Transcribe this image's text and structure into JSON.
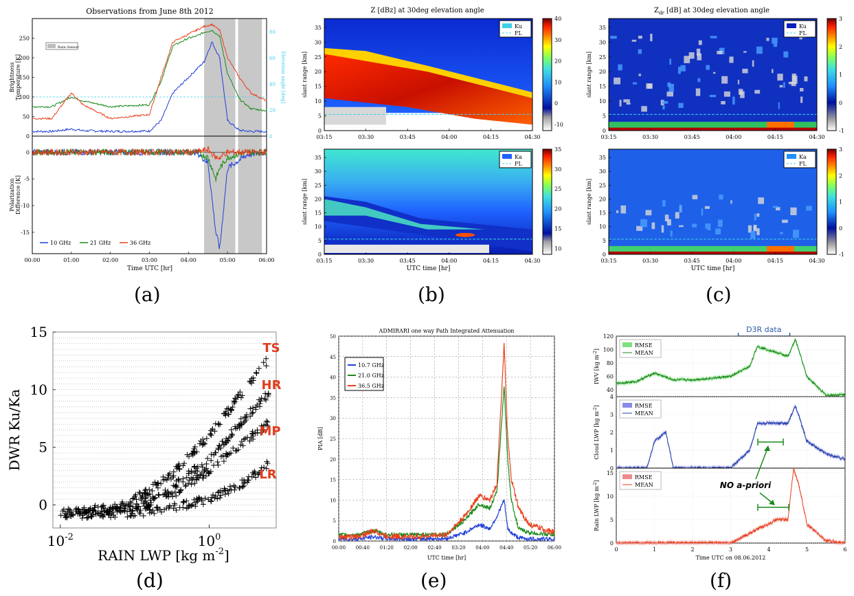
{
  "captions": [
    "(a)",
    "(b)",
    "(c)",
    "(d)",
    "(e)",
    "(f)"
  ],
  "panel_a": {
    "title": "Observations from June 8th 2012",
    "legend_box": "Rain Sensor",
    "top_ylabel": "Brightness Temperature [K]",
    "top_ylabel_lines": [
      "Brightness",
      "Temperature [K]"
    ],
    "right_ylabel": "Elevation angle [deg]",
    "bottom_ylabel_lines": [
      "Polarization",
      "Difference [K]"
    ],
    "xlabel": "Time UTC [hr]",
    "xticks": [
      "00:00",
      "01:00",
      "02:00",
      "03:00",
      "04:00",
      "05:00",
      "06:00"
    ],
    "top_yticks": [
      "0",
      "50",
      "100",
      "150",
      "200",
      "250"
    ],
    "right_yticks": [
      "0",
      "20",
      "40",
      "60",
      "80"
    ],
    "bottom_yticks": [
      "-15",
      "-10",
      "-5",
      "0"
    ],
    "legend": [
      "10 GHz",
      "21 GHz",
      "36 GHz"
    ]
  },
  "panel_b": {
    "title": "Z [dBz] at 30deg elevation angle",
    "ylabel": "slant range [km]",
    "xlabel": "UTC time [hr]",
    "xticks": [
      "03:15",
      "03:30",
      "03:45",
      "04:00",
      "04:15",
      "04:30"
    ],
    "yticks": [
      "0",
      "5",
      "10",
      "15",
      "20",
      "25",
      "30",
      "35"
    ],
    "top_colorbar": [
      "-10",
      "0",
      "10",
      "20",
      "30",
      "40"
    ],
    "bottom_colorbar": [
      "10",
      "15",
      "20",
      "25",
      "30",
      "35"
    ],
    "top_legend": [
      "Ku",
      "FL"
    ],
    "bottom_legend": [
      "Ka",
      "FL"
    ]
  },
  "panel_c": {
    "title_z": "Z",
    "title_sub": "dr",
    "title_rest": " [dB] at 30deg elevation angle",
    "ylabel": "slant range [km]",
    "xlabel": "UTC time [hr]",
    "xticks": [
      "03:15",
      "03:30",
      "03:45",
      "04:00",
      "04:15",
      "04:30"
    ],
    "yticks": [
      "0",
      "5",
      "10",
      "15",
      "20",
      "25",
      "30",
      "35"
    ],
    "colorbar": [
      "-1",
      "0",
      "1",
      "2",
      "3"
    ],
    "top_legend": [
      "Ku",
      "FL"
    ],
    "bottom_legend": [
      "Ka",
      "FL"
    ]
  },
  "panel_d": {
    "ylabel": "DWR Ku/Ka",
    "xlabel": "RAIN LWP [kg m",
    "xlabel_sup": "-2",
    "xlabel_end": "]",
    "yticks": [
      "0",
      "5",
      "10",
      "15"
    ],
    "xticks_base": [
      "10",
      "10"
    ],
    "xticks_exp": [
      "-2",
      "0"
    ],
    "curve_labels": [
      "TS",
      "HR",
      "MP",
      "LR"
    ]
  },
  "panel_e": {
    "title": "ADMIRARI one way Path Integrated Attenuation",
    "ylabel": "PIA [dB]",
    "xlabel": "UTC time [hr]",
    "xticks": [
      "00:00",
      "00:40",
      "01:20",
      "02:00",
      "02:40",
      "03:20",
      "04:00",
      "04:40",
      "05:20",
      "06:00"
    ],
    "yticks": [
      "0",
      "5",
      "10",
      "15",
      "20",
      "25",
      "30",
      "35",
      "40",
      "45",
      "50"
    ],
    "legend": [
      "10.7 GHz",
      "21.0 GHz",
      "36.5 GHz"
    ]
  },
  "panel_f": {
    "d3r_label": "D3R data",
    "no_apriori": "NO a-priori",
    "xlabel": "Time UTC on 08.06.2012",
    "xticks": [
      "0",
      "1",
      "2",
      "3",
      "4",
      "5",
      "6"
    ],
    "top_ylabel": "IWV [kg m",
    "mid_ylabel": "Cloud LWP [kg m",
    "bot_ylabel": "Rain LWP [kg m",
    "ylabel_sup": "-2",
    "ylabel_end": "]",
    "top_yticks": [
      "40",
      "60",
      "80",
      "100",
      "120"
    ],
    "mid_yticks": [
      "0",
      "1",
      "2",
      "3",
      "4"
    ],
    "bot_yticks": [
      "0",
      "5",
      "10",
      "15"
    ],
    "legend_rmse": "RMSE",
    "legend_mean": "MEAN"
  },
  "colors": {
    "blue": "#1f3fd8",
    "green": "#1a8a1a",
    "red": "#e8401c",
    "cyan": "#3fd0e8",
    "accent_red": "#e03c1c",
    "gray_band": "#c8c8c8"
  },
  "chart_data": [
    {
      "type": "line",
      "panel": "a-top",
      "title": "Observations from June 8th 2012",
      "x": [
        0,
        0.5,
        1.0,
        1.3,
        2.0,
        3.0,
        3.3,
        3.6,
        4.0,
        4.2,
        4.4,
        4.6,
        4.8,
        5.0,
        5.3,
        5.6,
        6.0
      ],
      "series": [
        {
          "name": "10 GHz",
          "values": [
            12,
            12,
            18,
            14,
            12,
            13,
            40,
            110,
            150,
            170,
            190,
            240,
            200,
            40,
            15,
            12,
            12
          ]
        },
        {
          "name": "21 GHz",
          "values": [
            75,
            75,
            100,
            90,
            75,
            80,
            140,
            230,
            250,
            255,
            265,
            270,
            255,
            160,
            95,
            70,
            65
          ]
        },
        {
          "name": "36 GHz",
          "values": [
            45,
            45,
            110,
            80,
            45,
            55,
            150,
            240,
            260,
            270,
            280,
            285,
            270,
            200,
            150,
            110,
            90
          ]
        }
      ],
      "xlabel": "Time UTC [hr]",
      "ylabel": "Brightness Temperature [K]",
      "ylim": [
        0,
        300
      ]
    },
    {
      "type": "line",
      "panel": "a-bottom",
      "x": [
        0,
        1,
        2,
        3,
        4.2,
        4.5,
        4.7,
        4.8,
        5.0,
        5.5,
        6.0
      ],
      "series": [
        {
          "name": "10 GHz",
          "values": [
            0,
            0,
            0,
            0,
            0,
            -2,
            -15,
            -18,
            -3,
            -0.5,
            0
          ]
        },
        {
          "name": "21 GHz",
          "values": [
            0,
            0,
            0,
            0,
            0,
            -1,
            -5,
            -3,
            -1,
            0,
            0
          ]
        },
        {
          "name": "36 GHz",
          "values": [
            0,
            0,
            0,
            0,
            0,
            0.5,
            -1,
            -1,
            0,
            0,
            0
          ]
        }
      ],
      "ylabel": "Polarization Difference [K]",
      "ylim": [
        -19,
        3
      ]
    },
    {
      "type": "scatter",
      "panel": "d",
      "xlabel": "RAIN LWP [kg m-2]",
      "ylabel": "DWR Ku/Ka",
      "xscale": "log",
      "series": [
        {
          "name": "TS",
          "x": [
            0.01,
            0.05,
            0.1,
            0.3,
            1,
            3,
            6
          ],
          "values": [
            -0.5,
            -0.3,
            0.5,
            2.5,
            6,
            10,
            12.5
          ]
        },
        {
          "name": "HR",
          "x": [
            0.01,
            0.05,
            0.1,
            0.3,
            1,
            3,
            6
          ],
          "values": [
            -0.6,
            -0.5,
            0,
            1.5,
            4,
            7.5,
            9.5
          ]
        },
        {
          "name": "MP",
          "x": [
            0.01,
            0.05,
            0.1,
            0.3,
            1,
            3,
            6
          ],
          "values": [
            -0.7,
            -0.6,
            -0.3,
            0.8,
            3,
            5.5,
            7
          ]
        },
        {
          "name": "LR",
          "x": [
            0.01,
            0.05,
            0.1,
            0.3,
            1,
            3,
            6
          ],
          "values": [
            -0.8,
            -0.8,
            -0.7,
            -0.3,
            0.5,
            2,
            3.5
          ]
        }
      ],
      "ylim": [
        -2,
        15
      ]
    },
    {
      "type": "line",
      "panel": "e",
      "title": "ADMIRARI one way Path Integrated Attenuation",
      "x": [
        0,
        0.5,
        1.0,
        1.3,
        2.0,
        3.0,
        3.5,
        3.9,
        4.2,
        4.4,
        4.6,
        4.7,
        4.8,
        5.0,
        5.3,
        6.0
      ],
      "series": [
        {
          "name": "10.7 GHz",
          "values": [
            0.5,
            0.5,
            1,
            0.6,
            0.5,
            0.6,
            2,
            4,
            3,
            6,
            10,
            3,
            2,
            0.8,
            0.5,
            0.5
          ]
        },
        {
          "name": "21.0 GHz",
          "values": [
            1.5,
            1.5,
            2.5,
            1.6,
            1.5,
            1.7,
            5,
            9,
            8,
            12,
            38,
            20,
            10,
            3,
            2,
            1.5
          ]
        },
        {
          "name": "36.5 GHz",
          "values": [
            1,
            1,
            2.5,
            1.2,
            1,
            1.5,
            6,
            11,
            10,
            14,
            48,
            25,
            15,
            8,
            4,
            2
          ]
        }
      ],
      "xlabel": "UTC time [hr]",
      "ylabel": "PIA [dB]",
      "ylim": [
        0,
        50
      ]
    },
    {
      "type": "line",
      "panel": "f-top",
      "x": [
        0,
        0.5,
        1.0,
        1.5,
        2,
        3,
        3.5,
        3.7,
        4.5,
        4.7,
        5.0,
        5.5,
        6
      ],
      "series": [
        {
          "name": "MEAN",
          "values": [
            50,
            52,
            65,
            55,
            55,
            60,
            75,
            105,
            90,
            115,
            60,
            32,
            33
          ]
        }
      ],
      "ylabel": "IWV [kg m-2]",
      "ylim": [
        30,
        120
      ]
    },
    {
      "type": "line",
      "panel": "f-mid",
      "x": [
        0,
        0.8,
        1.0,
        1.3,
        1.5,
        3.0,
        3.5,
        3.7,
        4.5,
        4.7,
        5.0,
        5.5,
        6
      ],
      "series": [
        {
          "name": "MEAN",
          "values": [
            0,
            0,
            1.5,
            2,
            0,
            0,
            1,
            2.5,
            2.5,
            3.5,
            1.5,
            0.8,
            0.5
          ]
        }
      ],
      "ylabel": "Cloud LWP [kg m-2]",
      "ylim": [
        0,
        4
      ]
    },
    {
      "type": "line",
      "panel": "f-bottom",
      "x": [
        0,
        3,
        4.2,
        4.5,
        4.65,
        4.8,
        5.0,
        5.5,
        6
      ],
      "series": [
        {
          "name": "MEAN",
          "values": [
            0,
            0,
            5,
            5,
            16,
            12,
            4,
            0.5,
            0
          ]
        }
      ],
      "ylabel": "Rain LWP [kg m-2]",
      "ylim": [
        0,
        16
      ]
    }
  ]
}
